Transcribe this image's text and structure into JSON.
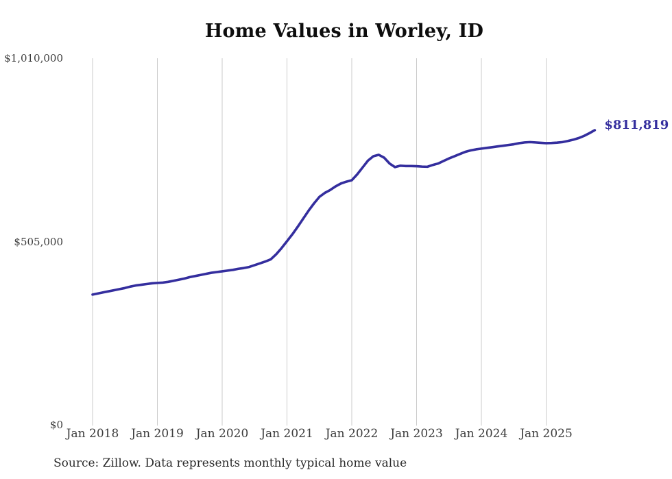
{
  "chart": {
    "title": "Home Values in Worley, ID",
    "end_label": "$811,819",
    "source": "Source: Zillow. Data represents monthly typical home value",
    "colors": {
      "line": "#342e9e",
      "grid": "#cbcbcb",
      "axis_text": "#3c3c3c",
      "title_text": "#0d0d0d",
      "end_label_text": "#342e9e"
    }
  },
  "chart_data": {
    "type": "line",
    "title": "Home Values in Worley, ID",
    "frequency": "monthly",
    "x_start": "Jan 2018",
    "x_end": "Oct 2025",
    "x_tick_labels": [
      "Jan 2018",
      "Jan 2019",
      "Jan 2020",
      "Jan 2021",
      "Jan 2022",
      "Jan 2023",
      "Jan 2024",
      "Jan 2025"
    ],
    "y_tick_labels": [
      "$0",
      "$505,000",
      "$1,010,000"
    ],
    "y_tick_values": [
      0,
      505000,
      1010000
    ],
    "ylim": [
      0,
      1010000
    ],
    "grid": "vertical-only",
    "legend": "none",
    "annotation": {
      "text": "$811,819",
      "position": "line-end"
    },
    "latest_value": 811819,
    "series": [
      {
        "name": "Typical home value",
        "values": [
          359000,
          362000,
          365000,
          368000,
          371000,
          374000,
          377000,
          381000,
          384000,
          386000,
          388000,
          390000,
          391000,
          392000,
          394000,
          397000,
          400000,
          403000,
          407000,
          410000,
          413000,
          416000,
          419000,
          421000,
          423000,
          425000,
          427000,
          430000,
          432000,
          435000,
          440000,
          445000,
          450000,
          456000,
          470000,
          487000,
          506000,
          525000,
          546000,
          568000,
          590000,
          610000,
          628000,
          639000,
          647000,
          657000,
          665000,
          670000,
          674000,
          690000,
          709000,
          728000,
          740000,
          744000,
          736000,
          720000,
          710000,
          714000,
          713000,
          713000,
          712500,
          711500,
          711000,
          716000,
          720000,
          727000,
          734000,
          740000,
          746000,
          752000,
          756000,
          759000,
          761000,
          763000,
          765000,
          767000,
          769000,
          771000,
          773000,
          776000,
          778000,
          779000,
          778000,
          777000,
          776000,
          776500,
          777500,
          779000,
          782000,
          785500,
          790000,
          796000,
          803500,
          811819
        ]
      }
    ]
  }
}
